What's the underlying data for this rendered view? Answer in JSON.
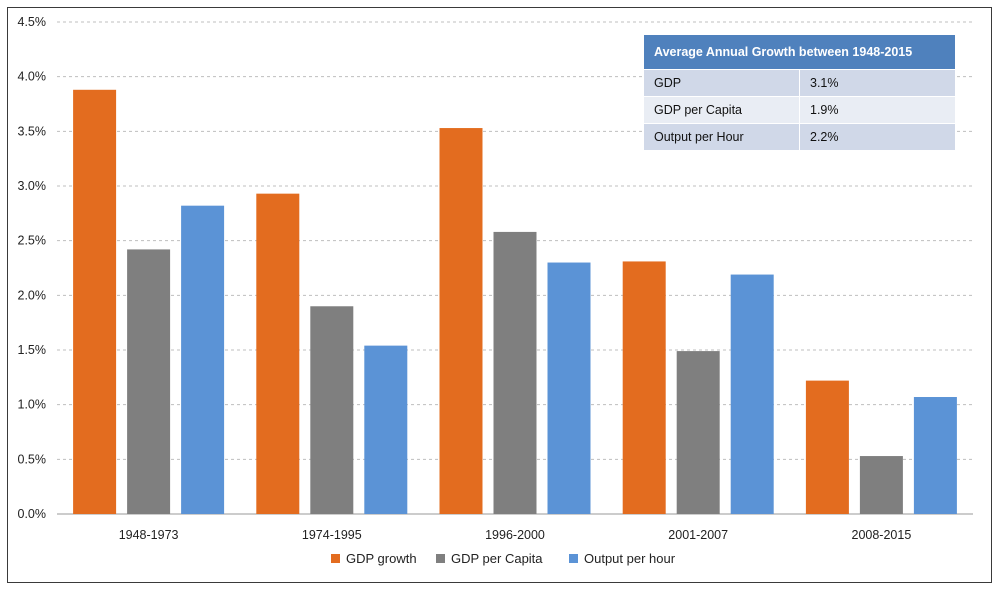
{
  "chart_data": {
    "type": "bar",
    "categories": [
      "1948-1973",
      "1974-1995",
      "1996-2000",
      "2001-2007",
      "2008-2015"
    ],
    "series": [
      {
        "name": "GDP growth",
        "color": "#e36c1f",
        "values": [
          3.88,
          2.93,
          3.53,
          2.31,
          1.22
        ]
      },
      {
        "name": "GDP per Capita",
        "color": "#7f7f7f",
        "values": [
          2.42,
          1.9,
          2.58,
          1.49,
          0.53
        ]
      },
      {
        "name": "Output per hour",
        "color": "#5b93d6",
        "values": [
          2.82,
          1.54,
          2.3,
          2.19,
          1.07
        ]
      }
    ],
    "ylim": [
      0,
      4.5
    ],
    "yticks": [
      "0.0%",
      "0.5%",
      "1.0%",
      "1.5%",
      "2.0%",
      "2.5%",
      "3.0%",
      "3.5%",
      "4.0%",
      "4.5%"
    ],
    "ytick_values": [
      0,
      0.5,
      1,
      1.5,
      2,
      2.5,
      3,
      3.5,
      4,
      4.5
    ],
    "grid": "horizontal-dashed",
    "legend": "bottom"
  },
  "summary_table": {
    "title": "Average Annual Growth between 1948-2015",
    "rows": [
      {
        "metric": "GDP",
        "value": "3.1%"
      },
      {
        "metric": "GDP per Capita",
        "value": "1.9%"
      },
      {
        "metric": "Output per Hour",
        "value": "2.2%"
      }
    ]
  }
}
